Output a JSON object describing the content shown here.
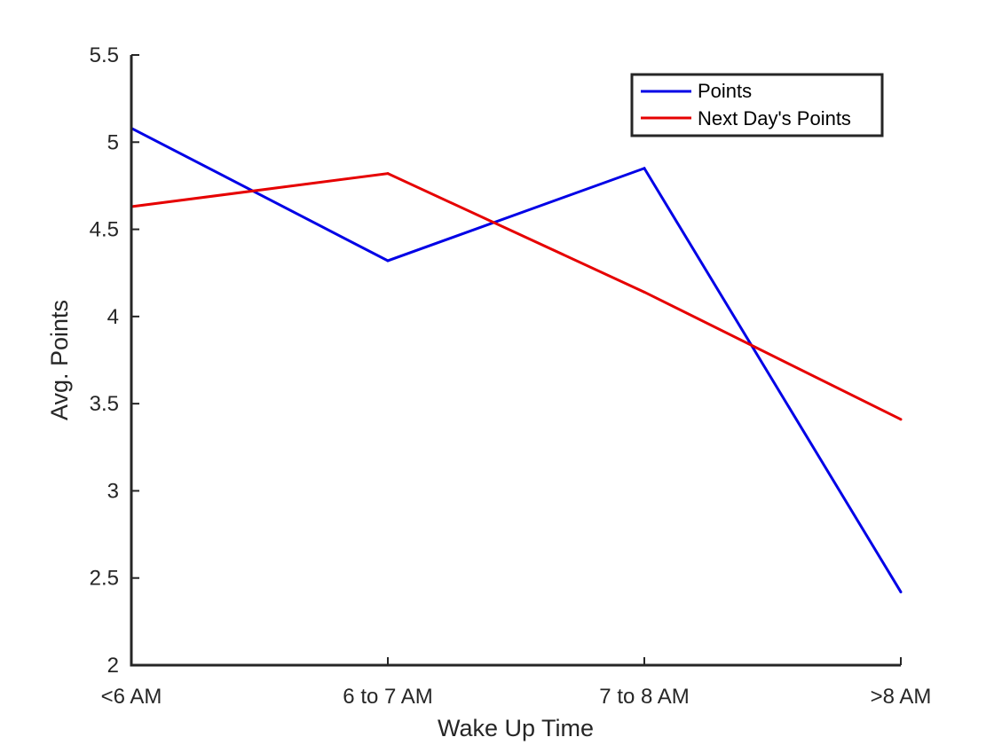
{
  "chart_data": {
    "type": "line",
    "categories": [
      "<6 AM",
      "6 to 7 AM",
      "7 to 8 AM",
      ">8 AM"
    ],
    "series": [
      {
        "name": "Points",
        "color": "#0000e6",
        "values": [
          5.08,
          4.32,
          4.85,
          2.42
        ]
      },
      {
        "name": "Next Day's Points",
        "color": "#e60000",
        "values": [
          4.63,
          4.82,
          4.14,
          3.41
        ]
      }
    ],
    "xlabel": "Wake Up Time",
    "ylabel": "Avg. Points",
    "ylim": [
      2,
      5.5
    ],
    "yticks": [
      "2",
      "2.5",
      "3",
      "3.5",
      "4",
      "4.5",
      "5",
      "5.5"
    ],
    "grid": false,
    "legend_position": "top-right"
  }
}
